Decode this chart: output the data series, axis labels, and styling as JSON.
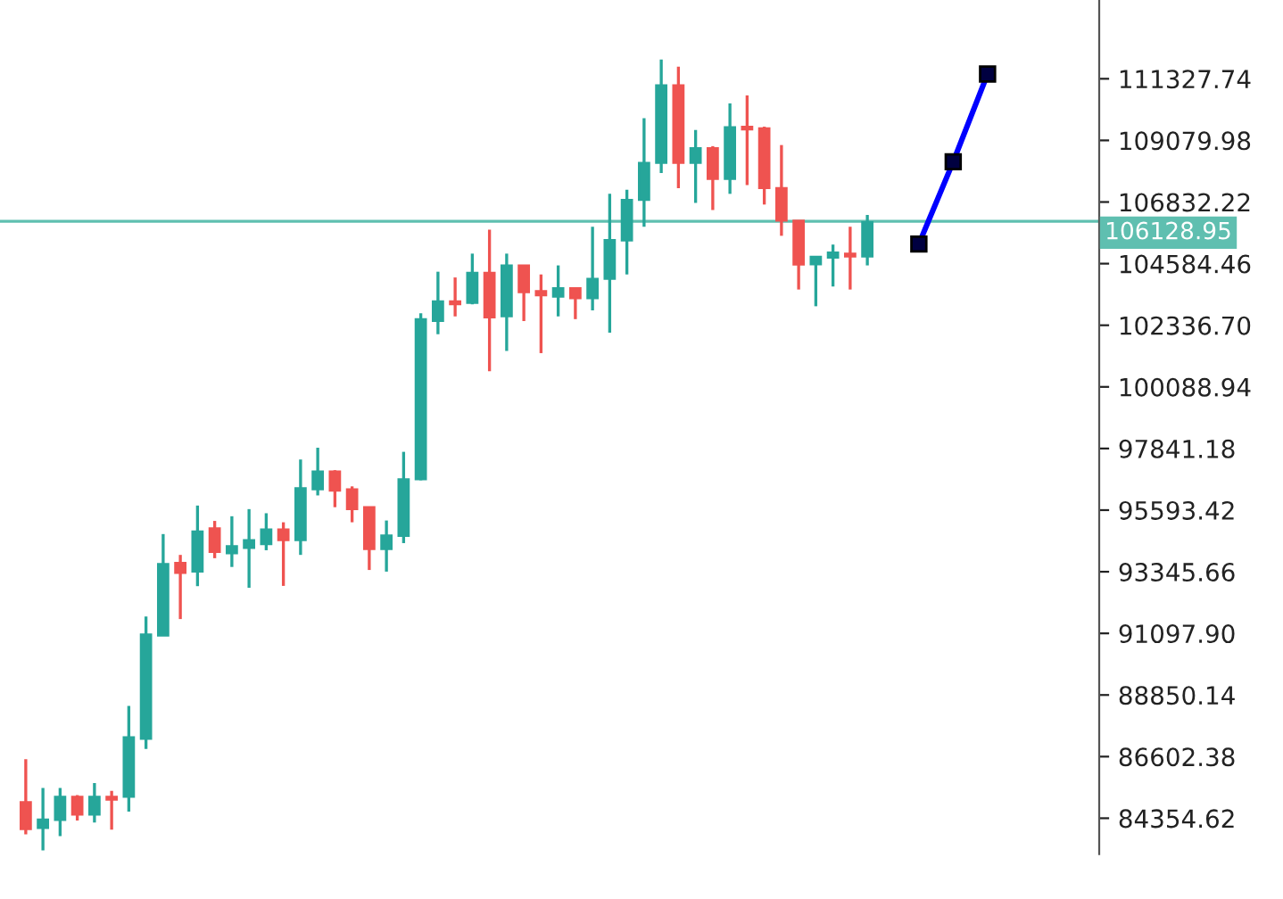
{
  "chart_data": {
    "type": "candlestick",
    "categories": [
      null,
      null,
      null,
      null,
      null,
      null,
      null,
      null,
      null,
      null,
      null,
      null,
      null,
      null,
      null,
      null,
      null,
      null,
      null,
      null,
      null,
      null,
      null,
      null,
      null,
      null,
      null,
      null,
      null,
      null,
      null,
      null,
      null,
      null,
      null,
      null,
      null,
      null,
      null,
      null,
      null,
      null,
      null,
      null,
      null,
      null,
      null,
      null,
      null,
      null,
      null,
      null,
      null,
      null,
      null,
      null,
      null,
      null,
      null,
      null,
      null,
      null,
      null
    ],
    "ohlc": [
      [
        84940,
        86510,
        83770,
        83960
      ],
      [
        84000,
        85460,
        83180,
        84310
      ],
      [
        84290,
        85460,
        83700,
        85140
      ],
      [
        85140,
        85200,
        84270,
        84490
      ],
      [
        84490,
        85640,
        84200,
        85140
      ],
      [
        85140,
        85350,
        83940,
        85030
      ],
      [
        85140,
        88450,
        84600,
        87310
      ],
      [
        87250,
        91710,
        86880,
        91060
      ],
      [
        91020,
        94720,
        91020,
        93630
      ],
      [
        93670,
        93960,
        91620,
        93300
      ],
      [
        93350,
        95760,
        92820,
        94820
      ],
      [
        94930,
        95200,
        93840,
        94070
      ],
      [
        94020,
        95370,
        93520,
        94280
      ],
      [
        94210,
        95630,
        92760,
        94500
      ],
      [
        94350,
        95480,
        94130,
        94890
      ],
      [
        94890,
        95150,
        92830,
        94500
      ],
      [
        94500,
        97440,
        93960,
        96390
      ],
      [
        96350,
        97870,
        96130,
        97000
      ],
      [
        97000,
        97050,
        95700,
        96300
      ],
      [
        96350,
        96460,
        95150,
        95630
      ],
      [
        95700,
        95700,
        93410,
        94170
      ],
      [
        94170,
        95215,
        93350,
        94670
      ],
      [
        94650,
        97720,
        94390,
        96720
      ],
      [
        96720,
        102770,
        96680,
        102560
      ],
      [
        102490,
        104290,
        102010,
        103210
      ],
      [
        103210,
        104080,
        102660,
        103100
      ],
      [
        103150,
        104950,
        103100,
        104250
      ],
      [
        104250,
        105820,
        100660,
        102620
      ],
      [
        102660,
        104950,
        101400,
        104520
      ],
      [
        104520,
        104520,
        102490,
        103540
      ],
      [
        103580,
        104190,
        101320,
        103430
      ],
      [
        103380,
        104520,
        102660,
        103690
      ],
      [
        103690,
        103690,
        102560,
        103320
      ],
      [
        103320,
        105930,
        102880,
        104030
      ],
      [
        104030,
        107130,
        102070,
        105450
      ],
      [
        105430,
        107280,
        104190,
        106910
      ],
      [
        106910,
        109890,
        105930,
        108260
      ],
      [
        108260,
        112030,
        107890,
        111090
      ],
      [
        111090,
        111770,
        107340,
        108260
      ],
      [
        108260,
        109460,
        106800,
        108800
      ],
      [
        108800,
        108870,
        106540,
        107670
      ],
      [
        107670,
        110430,
        107130,
        109560
      ],
      [
        109580,
        110720,
        107450,
        109480
      ],
      [
        109520,
        109580,
        106740,
        107340
      ],
      [
        107340,
        108910,
        105600,
        106150
      ],
      [
        106150,
        106150,
        103640,
        104550
      ],
      [
        104560,
        104840,
        103030,
        104840
      ],
      [
        104800,
        105280,
        103750,
        104990
      ],
      [
        104950,
        105930,
        103640,
        104840
      ],
      [
        104840,
        106360,
        104520,
        106100
      ],
      null,
      null,
      null,
      null,
      null,
      null,
      null,
      null,
      null,
      null,
      null,
      null,
      null
    ],
    "colors": [
      "#ef5350",
      "#26a69a",
      "#26a69a",
      "#ef5350",
      "#26a69a",
      "#ef5350",
      "#26a69a",
      "#26a69a",
      "#26a69a",
      "#ef5350",
      "#26a69a",
      "#ef5350",
      "#26a69a",
      "#26a69a",
      "#26a69a",
      "#ef5350",
      "#26a69a",
      "#26a69a",
      "#ef5350",
      "#ef5350",
      "#ef5350",
      "#26a69a",
      "#26a69a",
      "#26a69a",
      "#26a69a",
      "#ef5350",
      "#26a69a",
      "#ef5350",
      "#26a69a",
      "#ef5350",
      "#ef5350",
      "#26a69a",
      "#ef5350",
      "#26a69a",
      "#26a69a",
      "#26a69a",
      "#26a69a",
      "#26a69a",
      "#ef5350",
      "#26a69a",
      "#ef5350",
      "#26a69a",
      "#ef5350",
      "#ef5350",
      "#ef5350",
      "#ef5350",
      "#26a69a",
      "#26a69a",
      "#ef5350",
      "#26a69a",
      null,
      null,
      null,
      null,
      null,
      null,
      null,
      null,
      null,
      null,
      null,
      null,
      null
    ],
    "series": [
      {
        "type": "line",
        "color": "#0000ff",
        "marker": "square",
        "values": [
          null,
          null,
          null,
          null,
          null,
          null,
          null,
          null,
          null,
          null,
          null,
          null,
          null,
          null,
          null,
          null,
          null,
          null,
          null,
          null,
          null,
          null,
          null,
          null,
          null,
          null,
          null,
          null,
          null,
          null,
          null,
          null,
          null,
          null,
          null,
          null,
          null,
          null,
          null,
          null,
          null,
          null,
          null,
          null,
          null,
          null,
          null,
          null,
          null,
          null,
          null,
          null,
          105300,
          null,
          108300,
          null,
          111500,
          null,
          null,
          null,
          null,
          null,
          null
        ]
      }
    ],
    "ylim": [
      83048,
      114201
    ],
    "yticks": [
      84354.62,
      86602.38,
      88850.14,
      {
        "value": 91097.9,
        "label": "91097.90"
      },
      93345.66,
      95593.42,
      97841.18,
      100088.94,
      {
        "value": 102336.7,
        "label": "102336.70"
      },
      104584.46,
      106832.22,
      109079.98,
      111327.74
    ],
    "ref_lines": [
      {
        "axis": "y",
        "value": 106128.95,
        "label": "106128.95",
        "color": "#5fbfb0"
      }
    ],
    "tick_labels": "y",
    "grid": false,
    "legend": false
  }
}
